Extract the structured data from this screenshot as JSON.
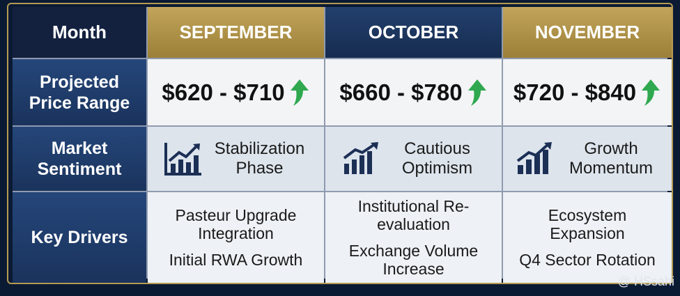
{
  "header": [
    "Month",
    "SEPTEMBER",
    "OCTOBER",
    "NOVEMBER"
  ],
  "rows": [
    {
      "label": "Projected Price Range",
      "cells": [
        "$620 - $710",
        "$660 - $780",
        "$720 - $840"
      ]
    },
    {
      "label": "Market Sentiment",
      "cells": [
        "Stabilization Phase",
        "Cautious Optimism",
        "Growth Momentum"
      ]
    },
    {
      "label": "Key Drivers",
      "cells": [
        [
          "Pasteur Upgrade Integration",
          "Initial RWA Growth"
        ],
        [
          "Institutional Re-evaluation",
          "Exchange Volume Increase"
        ],
        [
          "Ecosystem Expansion",
          "Q4 Sector Rotation"
        ]
      ]
    }
  ],
  "watermark": "@ HSsahi"
}
